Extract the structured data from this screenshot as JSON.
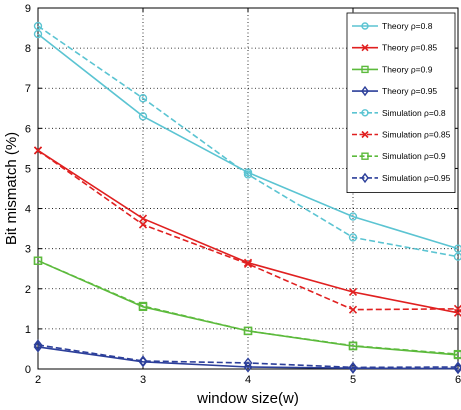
{
  "chart_data": {
    "type": "line",
    "xlabel": "window size(w)",
    "ylabel": "Bit mismatch (%)",
    "xlim": [
      2,
      6
    ],
    "ylim": [
      0,
      9
    ],
    "xticks": [
      "2",
      "3",
      "4",
      "5",
      "6"
    ],
    "yticks": [
      "0",
      "1",
      "2",
      "3",
      "4",
      "5",
      "6",
      "7",
      "8",
      "9"
    ],
    "grid": true,
    "legend_position": "top-right",
    "x": [
      2,
      3,
      4,
      5,
      6
    ],
    "series": [
      {
        "name": "Theory ρ=0.8",
        "values": [
          8.35,
          6.3,
          4.9,
          3.8,
          3.0
        ],
        "color": "#5bc4d2",
        "dash": "solid",
        "marker": "circle"
      },
      {
        "name": "Theory ρ=0.85",
        "values": [
          5.45,
          3.75,
          2.65,
          1.92,
          1.4
        ],
        "color": "#e02020",
        "dash": "solid",
        "marker": "x"
      },
      {
        "name": "Theory ρ=0.9",
        "values": [
          2.7,
          1.55,
          0.95,
          0.57,
          0.35
        ],
        "color": "#5cba3c",
        "dash": "solid",
        "marker": "square"
      },
      {
        "name": "Theory ρ=0.95",
        "values": [
          0.55,
          0.18,
          0.05,
          0.02,
          0.01
        ],
        "color": "#2c3f9a",
        "dash": "solid",
        "marker": "diamond"
      },
      {
        "name": "Simulation ρ=0.8",
        "values": [
          8.55,
          6.75,
          4.85,
          3.28,
          2.8
        ],
        "color": "#5bc4d2",
        "dash": "dashed",
        "marker": "circle"
      },
      {
        "name": "Simulation ρ=0.85",
        "values": [
          5.45,
          3.6,
          2.62,
          1.48,
          1.5
        ],
        "color": "#e02020",
        "dash": "dashed",
        "marker": "x"
      },
      {
        "name": "Simulation ρ=0.9",
        "values": [
          2.7,
          1.57,
          0.95,
          0.58,
          0.37
        ],
        "color": "#5cba3c",
        "dash": "dashed",
        "marker": "square"
      },
      {
        "name": "Simulation ρ=0.95",
        "values": [
          0.6,
          0.2,
          0.15,
          0.04,
          0.05
        ],
        "color": "#2c3f9a",
        "dash": "dashed",
        "marker": "diamond"
      }
    ]
  }
}
